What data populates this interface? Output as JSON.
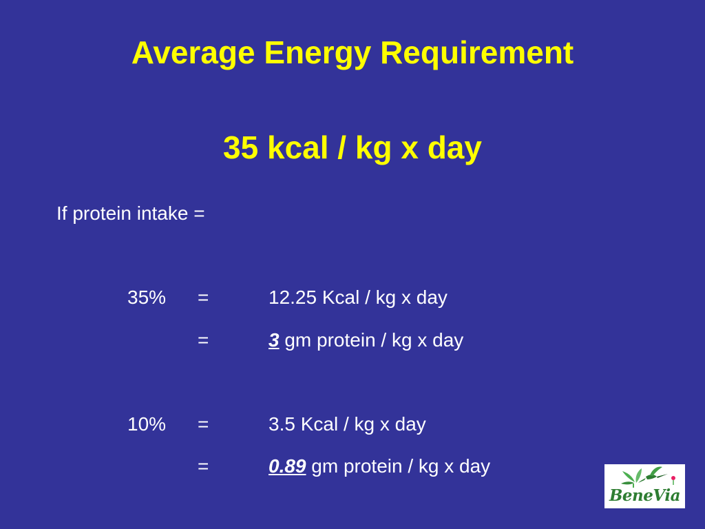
{
  "slide": {
    "title": "Average Energy Requirement",
    "subtitle": "35 kcal / kg x day",
    "intro": "If protein intake =",
    "rows": [
      {
        "percent": "35%",
        "equals": "=",
        "value_prefix": "",
        "value_rest": "12.25 Kcal / kg x day"
      },
      {
        "percent": "",
        "equals": "=",
        "value_prefix": "3",
        "value_rest": " gm protein / kg x day"
      },
      {
        "percent": "10%",
        "equals": "=",
        "value_prefix": "",
        "value_rest": "3.5 Kcal / kg x day"
      },
      {
        "percent": "",
        "equals": "=",
        "value_prefix": "0.89",
        "value_rest": " gm protein / kg x day"
      }
    ],
    "logo": {
      "text": "BeneVia",
      "icon": "hummingbird-icon"
    },
    "colors": {
      "background": "#333399",
      "title": "#ffff00",
      "body_text": "#ffffff",
      "logo_text": "#2e7d32"
    }
  }
}
